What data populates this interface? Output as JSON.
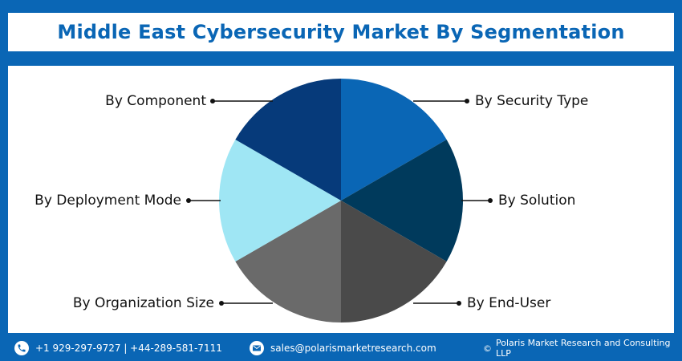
{
  "title": "Middle East Cybersecurity Market By Segmentation",
  "colors": {
    "frame": "#0a66b5",
    "title_text": "#0a66b5",
    "slice_colors": [
      "#0a66b5",
      "#003a5c",
      "#4a4a4a",
      "#6a6a6a",
      "#9fe6f4",
      "#063a7a"
    ]
  },
  "chart_data": {
    "type": "pie",
    "title": "Middle East Cybersecurity Market By Segmentation",
    "categories": [
      "By Security Type",
      "By Solution",
      "By End-User",
      "By Organization Size",
      "By Deployment Mode",
      "By Component"
    ],
    "values": [
      1,
      1,
      1,
      1,
      1,
      1
    ],
    "legend": "none",
    "label_style": "callout lines with dot markers"
  },
  "footer": {
    "phone_icon": "phone-icon",
    "phone": "+1 929-297-9727 | +44-289-581-7111",
    "email_icon": "email-icon",
    "email": "sales@polarismarketresearch.com",
    "copyright_symbol": "©",
    "copyright": "Polaris Market Research and Consulting LLP"
  }
}
